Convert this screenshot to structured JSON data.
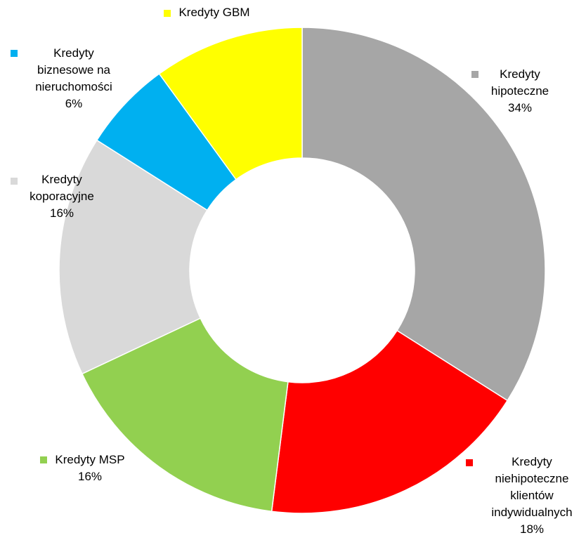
{
  "chart_data": {
    "type": "donut",
    "categories": [
      "Kredyty hipoteczne",
      "Kredyty niehipoteczne klientów indywidualnych",
      "Kredyty MSP",
      "Kredyty koporacyjne",
      "Kredyty biznesowe na nieruchomości",
      "Kredyty GBM"
    ],
    "values": [
      34,
      18,
      16,
      16,
      6,
      10
    ],
    "value_labels": [
      "34%",
      "18%",
      "16%",
      "16%",
      "6%",
      null
    ],
    "colors": [
      "#a6a6a6",
      "#ff0000",
      "#92d050",
      "#d9d9d9",
      "#00b0f0",
      "#ffff00"
    ]
  }
}
